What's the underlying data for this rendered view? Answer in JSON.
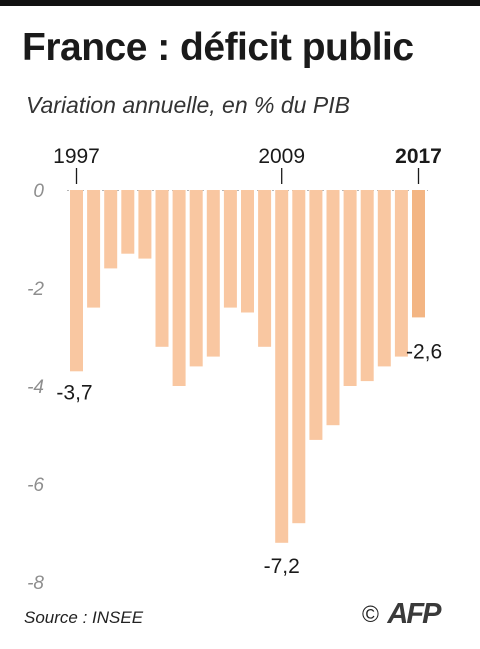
{
  "header": {
    "title": "France : déficit public",
    "subtitle": "Variation annuelle, en % du PIB"
  },
  "footer": {
    "source": "Source : INSEE",
    "copyright": "©",
    "logo": "AFP"
  },
  "chart_data": {
    "type": "bar",
    "title": "France : déficit public",
    "subtitle": "Variation annuelle, en % du PIB",
    "xlabel": "",
    "ylabel": "",
    "ylim": [
      -8,
      0
    ],
    "yticks": [
      {
        "value": 0,
        "label": "0"
      },
      {
        "value": -2,
        "label": "-2"
      },
      {
        "value": -4,
        "label": "-4"
      },
      {
        "value": -6,
        "label": "-6"
      },
      {
        "value": -8,
        "label": "-8"
      }
    ],
    "xtick_labels": [
      {
        "category": "1997",
        "label": "1997",
        "bold": false
      },
      {
        "category": "2009",
        "label": "2009",
        "bold": false
      },
      {
        "category": "2017",
        "label": "2017",
        "bold": true
      }
    ],
    "categories": [
      "1997",
      "1998",
      "1999",
      "2000",
      "2001",
      "2002",
      "2003",
      "2004",
      "2005",
      "2006",
      "2007",
      "2008",
      "2009",
      "2010",
      "2011",
      "2012",
      "2013",
      "2014",
      "2015",
      "2016",
      "2017"
    ],
    "values": [
      -3.7,
      -2.4,
      -1.6,
      -1.3,
      -1.4,
      -3.2,
      -4.0,
      -3.6,
      -3.4,
      -2.4,
      -2.5,
      -3.2,
      -7.2,
      -6.8,
      -5.1,
      -4.8,
      -4.0,
      -3.9,
      -3.6,
      -3.4,
      -2.6
    ],
    "bar_color": "#f9c7a1",
    "highlight_color": "#f3b583",
    "highlight_category": "2017",
    "data_labels": [
      {
        "category": "1997",
        "text": "-3,7"
      },
      {
        "category": "2009",
        "text": "-7,2"
      },
      {
        "category": "2017",
        "text": "-2,6"
      }
    ],
    "grid": false
  }
}
